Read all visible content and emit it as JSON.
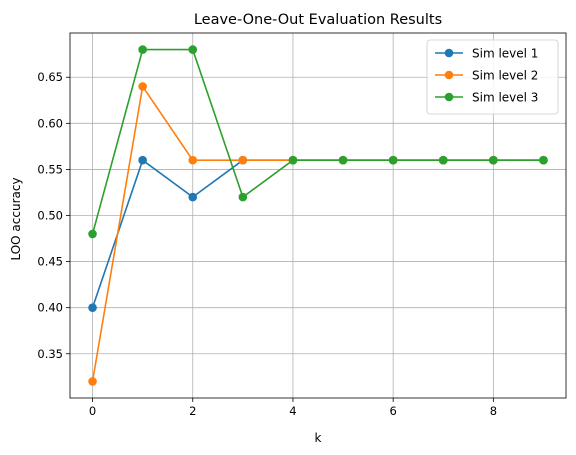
{
  "chart_data": {
    "type": "line",
    "title": "Leave-One-Out Evaluation Results",
    "xlabel": "k",
    "ylabel": "LOO accuracy",
    "x": [
      0,
      1,
      2,
      3,
      4,
      5,
      6,
      7,
      8,
      9
    ],
    "xlim": [
      -0.45,
      9.45
    ],
    "ylim": [
      0.302,
      0.698
    ],
    "xticks": [
      0,
      2,
      4,
      6,
      8
    ],
    "yticks": [
      0.35,
      0.4,
      0.45,
      0.5,
      0.55,
      0.6,
      0.65
    ],
    "xtick_labels": [
      "0",
      "2",
      "4",
      "6",
      "8"
    ],
    "ytick_labels": [
      "0.35",
      "0.40",
      "0.45",
      "0.50",
      "0.55",
      "0.60",
      "0.65"
    ],
    "grid": true,
    "legend_position": "top-right",
    "series": [
      {
        "name": "Sim level 1",
        "color": "#1f77b4",
        "values": [
          0.4,
          0.56,
          0.52,
          0.56,
          0.56,
          0.56,
          0.56,
          0.56,
          0.56,
          0.56
        ]
      },
      {
        "name": "Sim level 2",
        "color": "#ff7f0e",
        "values": [
          0.32,
          0.64,
          0.56,
          0.56,
          0.56,
          0.56,
          0.56,
          0.56,
          0.56,
          0.56
        ]
      },
      {
        "name": "Sim level 3",
        "color": "#2ca02c",
        "values": [
          0.48,
          0.68,
          0.68,
          0.52,
          0.56,
          0.56,
          0.56,
          0.56,
          0.56,
          0.56
        ]
      }
    ]
  }
}
